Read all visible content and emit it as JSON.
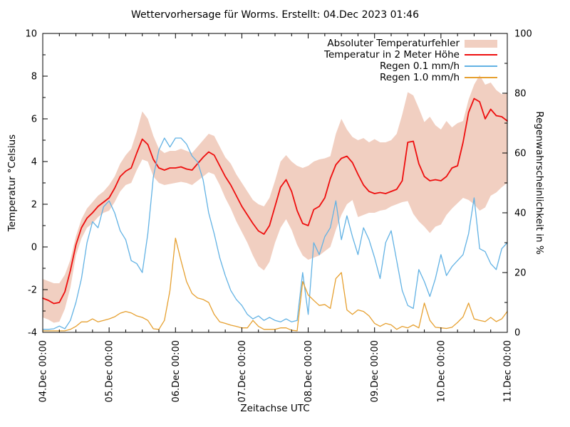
{
  "title": "Wettervorhersage für Worms. Erstellt: 04.Dec 2023 01:46",
  "colors": {
    "band": "#f1cfc1",
    "temperature": "#ee0e0e",
    "rain01": "#62b2e4",
    "rain10": "#e6a030",
    "frame": "#000000",
    "text": "#000000"
  },
  "legend": {
    "items": [
      {
        "label": "Absoluter Temperaturfehler",
        "swatch": "band"
      },
      {
        "label": "Temperatur in 2 Meter Höhe",
        "swatch": "temperature"
      },
      {
        "label": "Regen 0.1 mm/h",
        "swatch": "rain01"
      },
      {
        "label": "Regen 1.0 mm/h",
        "swatch": "rain10"
      }
    ]
  },
  "chart_data": {
    "type": "line",
    "title": "Wettervorhersage für Worms. Erstellt: 04.Dec 2023 01:46",
    "xlabel": "Zeitachse UTC",
    "ylabel_left": "Temperatur °Celsius",
    "ylabel_right": "Regenwahrscheinlichkeit in %",
    "x_unit": "hours since 04.Dec 2023 00:00 UTC",
    "x_step_hours": 2,
    "x_range_hours": [
      0,
      168
    ],
    "x_tick_labels": [
      "04.Dec 00:00",
      "05.Dec 00:00",
      "06.Dec 00:00",
      "07.Dec 00:00",
      "08.Dec 00:00",
      "09.Dec 00:00",
      "10.Dec 00:00",
      "11.Dec 00:00"
    ],
    "x_minor_tick_hours": 6,
    "y_left_range": [
      -4,
      10
    ],
    "y_left_major_step": 2,
    "y_left_minor_step": 1,
    "y_right_range": [
      0,
      100
    ],
    "y_right_major_step": 20,
    "y_right_minor_step": 10,
    "grid": false,
    "legend_position": "top-right",
    "series": [
      {
        "name": "Absoluter Temperaturfehler",
        "type": "band",
        "axis": "left",
        "upper": [
          -1.5,
          -1.6,
          -1.7,
          -1.7,
          -1.3,
          -0.6,
          0.5,
          1.3,
          1.8,
          2.1,
          2.4,
          2.6,
          2.9,
          3.3,
          3.9,
          4.3,
          4.6,
          5.4,
          6.35,
          6.0,
          5.2,
          4.6,
          4.4,
          4.5,
          4.5,
          4.6,
          4.5,
          4.4,
          4.7,
          5.0,
          5.3,
          5.2,
          4.7,
          4.2,
          3.9,
          3.4,
          3.0,
          2.6,
          2.2,
          2.0,
          1.9,
          2.3,
          3.1,
          4.0,
          4.3,
          4.0,
          3.8,
          3.7,
          3.8,
          4.0,
          4.1,
          4.15,
          4.25,
          5.3,
          6.0,
          5.5,
          5.15,
          5.0,
          5.1,
          4.9,
          5.05,
          4.9,
          4.9,
          5.0,
          5.3,
          6.2,
          7.25,
          7.1,
          6.5,
          5.85,
          6.1,
          5.7,
          5.5,
          5.9,
          5.6,
          5.8,
          5.9,
          6.9,
          7.6,
          8.05,
          7.6,
          7.7,
          7.35,
          7.15,
          7.2
        ],
        "lower": [
          -3.3,
          -3.4,
          -3.55,
          -3.5,
          -2.9,
          -1.9,
          -0.4,
          0.4,
          0.9,
          1.1,
          1.4,
          1.6,
          1.7,
          2.1,
          2.6,
          2.9,
          3.0,
          3.6,
          4.1,
          4.0,
          3.3,
          3.0,
          2.9,
          2.95,
          3.0,
          3.05,
          3.0,
          2.9,
          3.1,
          3.3,
          3.5,
          3.4,
          2.9,
          2.3,
          1.8,
          1.2,
          0.7,
          0.2,
          -0.4,
          -0.9,
          -1.1,
          -0.7,
          0.2,
          0.9,
          1.3,
          0.8,
          0.1,
          -0.4,
          -0.6,
          -0.5,
          -0.4,
          -0.2,
          0.0,
          0.8,
          1.5,
          2.0,
          2.2,
          1.4,
          1.5,
          1.6,
          1.6,
          1.7,
          1.75,
          1.9,
          2.0,
          2.1,
          2.15,
          1.55,
          1.2,
          0.95,
          0.65,
          0.95,
          1.05,
          1.5,
          1.8,
          2.05,
          2.3,
          2.2,
          2.0,
          1.7,
          1.85,
          2.4,
          2.55,
          2.8,
          3.0
        ]
      },
      {
        "name": "Temperatur in 2 Meter Höhe",
        "type": "line",
        "axis": "left",
        "values": [
          -2.4,
          -2.5,
          -2.65,
          -2.6,
          -2.1,
          -1.1,
          0.1,
          0.9,
          1.35,
          1.6,
          1.9,
          2.1,
          2.3,
          2.75,
          3.3,
          3.55,
          3.7,
          4.4,
          5.05,
          4.8,
          4.1,
          3.7,
          3.6,
          3.7,
          3.7,
          3.75,
          3.65,
          3.6,
          3.9,
          4.2,
          4.45,
          4.3,
          3.8,
          3.3,
          2.9,
          2.4,
          1.9,
          1.5,
          1.1,
          0.75,
          0.6,
          1.0,
          1.9,
          2.8,
          3.15,
          2.6,
          1.7,
          1.1,
          1.0,
          1.75,
          1.9,
          2.3,
          3.2,
          3.85,
          4.15,
          4.25,
          3.95,
          3.4,
          2.9,
          2.6,
          2.5,
          2.55,
          2.5,
          2.6,
          2.7,
          3.1,
          4.9,
          4.95,
          3.9,
          3.3,
          3.1,
          3.15,
          3.1,
          3.3,
          3.7,
          3.8,
          4.9,
          6.3,
          6.95,
          6.8,
          6.0,
          6.45,
          6.15,
          6.1,
          5.9
        ]
      },
      {
        "name": "Regen 0.1 mm/h",
        "type": "line",
        "axis": "right",
        "values": [
          1,
          1,
          1.2,
          2.1,
          1.2,
          4,
          10,
          18,
          30,
          37,
          35,
          42,
          44,
          40,
          34,
          31,
          24,
          23,
          20,
          33,
          52,
          61,
          65,
          62,
          65,
          65,
          63,
          59,
          57,
          51,
          40,
          33,
          25,
          19,
          14,
          11,
          9,
          6,
          4.5,
          5.5,
          4,
          5,
          4,
          3.5,
          4.5,
          3.5,
          4,
          20,
          6,
          30,
          26,
          32,
          35,
          44,
          31,
          39,
          32,
          26,
          35,
          31,
          25,
          18,
          30,
          34,
          24,
          14,
          9,
          8,
          21,
          17,
          12,
          18,
          26,
          19,
          22,
          24,
          26,
          33,
          45,
          28,
          27,
          23,
          21,
          28,
          30
        ]
      },
      {
        "name": "Regen 1.0 mm/h",
        "type": "line",
        "axis": "right",
        "values": [
          0.5,
          0.5,
          0.5,
          0.5,
          0.5,
          1,
          2,
          3.5,
          3.5,
          4.5,
          3.5,
          4,
          4.5,
          5.2,
          6.4,
          7,
          6.5,
          5.5,
          5,
          4,
          1.2,
          1,
          4,
          14,
          31.5,
          24,
          17,
          13,
          11.5,
          11,
          10,
          6,
          3.5,
          3,
          2.4,
          2,
          1.5,
          1.5,
          4,
          2,
          1,
          1,
          1,
          1.5,
          1.5,
          0.7,
          0.5,
          17,
          12.5,
          10.7,
          9,
          9.3,
          8,
          18,
          20,
          7.5,
          6,
          7.5,
          7,
          5.5,
          3,
          2,
          3,
          2.5,
          1,
          2,
          1.5,
          2.5,
          1.5,
          9.8,
          4,
          1.7,
          1.5,
          1.3,
          1.7,
          3.3,
          5.2,
          9.8,
          4.5,
          4,
          3.6,
          5,
          3.6,
          4.5,
          7
        ]
      }
    ]
  },
  "axes": {
    "left_label": "Temperatur °Celsius",
    "right_label": "Regenwahrscheinlichkeit in %",
    "bottom_label": "Zeitachse UTC"
  }
}
